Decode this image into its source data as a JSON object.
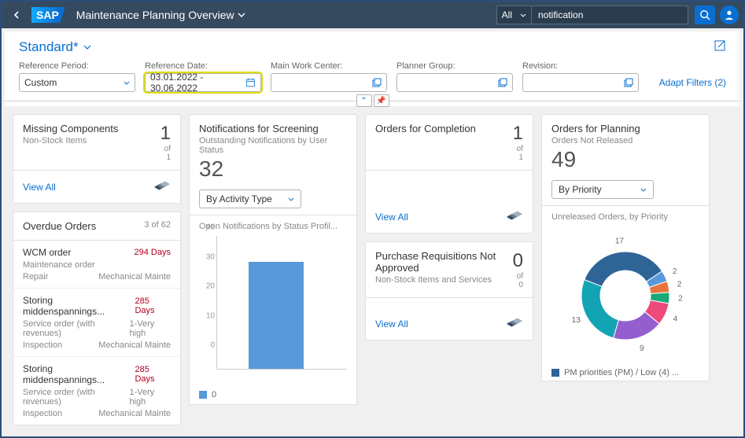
{
  "shell": {
    "title": "Maintenance Planning Overview",
    "search_scope": "All",
    "search_value": "notification"
  },
  "variant": {
    "name": "Standard*"
  },
  "filters": {
    "period_label": "Reference Period:",
    "period_value": "Custom",
    "date_label": "Reference Date:",
    "date_value": "03.01.2022 - 30.06.2022",
    "work_center_label": "Main Work Center:",
    "work_center_value": "",
    "planner_group_label": "Planner Group:",
    "planner_group_value": "",
    "revision_label": "Revision:",
    "revision_value": "",
    "adapt": "Adapt Filters (2)"
  },
  "cards": {
    "missing": {
      "title": "Missing Components",
      "subtitle": "Non-Stock Items",
      "kpi": "1",
      "kpi_of": "of",
      "kpi_total": "1",
      "view_all": "View All"
    },
    "overdue": {
      "title": "Overdue Orders",
      "count": "3 of 62",
      "items": [
        {
          "title": "WCM order",
          "days": "294 Days",
          "rows": [
            [
              "Maintenance order",
              ""
            ],
            [
              "Repair",
              "Mechanical Mainte"
            ]
          ]
        },
        {
          "title": "Storing middenspannings...",
          "days": "285 Days",
          "rows": [
            [
              "Service order (with revenues)",
              "1-Very high"
            ],
            [
              "Inspection",
              "Mechanical Mainte"
            ]
          ]
        },
        {
          "title": "Storing middenspannings...",
          "days": "285 Days",
          "rows": [
            [
              "Service order (with revenues)",
              "1-Very high"
            ],
            [
              "Inspection",
              "Mechanical Mainte"
            ]
          ]
        }
      ]
    },
    "notifications": {
      "title": "Notifications for Screening",
      "subtitle": "Outstanding Notifications by User Status",
      "kpi": "32",
      "dd": "By Activity Type",
      "chart_title": "Open Notifications by Status Profil...",
      "chart": {
        "type": "bar",
        "yticks": [
          0,
          10,
          20,
          30,
          40
        ],
        "ymax": 40,
        "bars": [
          {
            "label": "0",
            "value": 32,
            "color": "#5899da"
          }
        ]
      },
      "legend": "0"
    },
    "orders_completion": {
      "title": "Orders for Completion",
      "kpi": "1",
      "kpi_of": "of",
      "kpi_total": "1",
      "view_all": "View All"
    },
    "pr": {
      "title": "Purchase Requisitions Not Approved",
      "subtitle": "Non-Stock Items and Services",
      "kpi": "0",
      "kpi_of": "of",
      "kpi_total": "0",
      "view_all": "View All"
    },
    "orders_planning": {
      "title": "Orders for Planning",
      "subtitle": "Orders Not Released",
      "kpi": "49",
      "dd": "By Priority",
      "chart_title": "Unreleased Orders, by Priority",
      "donut": {
        "type": "donut",
        "slices": [
          {
            "value": 17,
            "color": "#2f6497",
            "label": "17"
          },
          {
            "value": 2,
            "color": "#5899da",
            "label": "2"
          },
          {
            "value": 2,
            "color": "#e8743b",
            "label": "2"
          },
          {
            "value": 2,
            "color": "#19a979",
            "label": "2"
          },
          {
            "value": 4,
            "color": "#ed4a7b",
            "label": "4"
          },
          {
            "value": 9,
            "color": "#945ecf",
            "label": "9"
          },
          {
            "value": 13,
            "color": "#13a4b4",
            "label": "13"
          }
        ]
      },
      "legend": "PM priorities (PM) / Low (4)  ..."
    }
  }
}
